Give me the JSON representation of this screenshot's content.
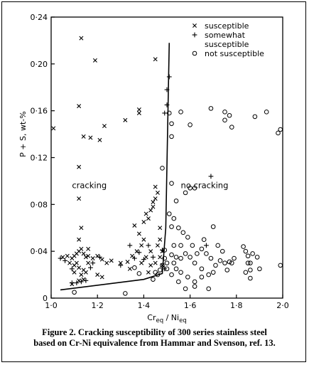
{
  "caption": {
    "line1": "Figure 2.  Cracking susceptibility of 300 series stainless steel",
    "line2": "based on Cr-Ni equivalence from Hammar and Svenson, ref. 13."
  },
  "chart_data": {
    "type": "scatter",
    "xlabel_main": "Cr",
    "xlabel_sub1": "eq",
    "xlabel_mid": " / Ni",
    "xlabel_sub2": "eq",
    "ylabel": "P + S,  wt-%",
    "xlim": [
      1.0,
      2.0
    ],
    "ylim": [
      0.0,
      0.24
    ],
    "x_ticks": [
      1.0,
      1.2,
      1.4,
      1.6,
      1.8,
      2.0
    ],
    "x_tick_labels": [
      "1·0",
      "1·2",
      "1·4",
      "1·6",
      "1·8",
      "2·0"
    ],
    "y_ticks": [
      0.0,
      0.04,
      0.08,
      0.12,
      0.16,
      0.2,
      0.24
    ],
    "y_tick_labels": [
      "0",
      "0·04",
      "0·08",
      "0·12",
      "0·16",
      "0·20",
      "0·24"
    ],
    "legend_position": "top-right",
    "legend": [
      {
        "marker": "x",
        "label_lines": [
          "susceptible"
        ]
      },
      {
        "marker": "+",
        "label_lines": [
          "somewhat",
          "susceptible"
        ]
      },
      {
        "marker": "o",
        "label_lines": [
          "not susceptible"
        ]
      }
    ],
    "annotations": [
      "cracking",
      "no cracking"
    ],
    "boundary": {
      "x": [
        1.04,
        1.4,
        1.48,
        1.495,
        1.51
      ],
      "y": [
        0.007,
        0.016,
        0.021,
        0.06,
        0.218
      ]
    },
    "series": [
      {
        "marker": "x",
        "points": [
          [
            1.01,
            0.145
          ],
          [
            1.13,
            0.222
          ],
          [
            1.12,
            0.164
          ],
          [
            1.14,
            0.138
          ],
          [
            1.12,
            0.112
          ],
          [
            1.12,
            0.085
          ],
          [
            1.19,
            0.203
          ],
          [
            1.17,
            0.137
          ],
          [
            1.21,
            0.135
          ],
          [
            1.23,
            0.147
          ],
          [
            1.32,
            0.152
          ],
          [
            1.38,
            0.158
          ],
          [
            1.38,
            0.161
          ],
          [
            1.45,
            0.204
          ],
          [
            1.05,
            0.035
          ],
          [
            1.07,
            0.036
          ],
          [
            1.09,
            0.034
          ],
          [
            1.1,
            0.036
          ],
          [
            1.11,
            0.038
          ],
          [
            1.12,
            0.04
          ],
          [
            1.13,
            0.042
          ],
          [
            1.14,
            0.038
          ],
          [
            1.15,
            0.035
          ],
          [
            1.16,
            0.036
          ],
          [
            1.12,
            0.05
          ],
          [
            1.13,
            0.06
          ],
          [
            1.11,
            0.03
          ],
          [
            1.1,
            0.028
          ],
          [
            1.12,
            0.026
          ],
          [
            1.14,
            0.024
          ],
          [
            1.15,
            0.022
          ],
          [
            1.13,
            0.02
          ],
          [
            1.12,
            0.015
          ],
          [
            1.14,
            0.016
          ],
          [
            1.16,
            0.03
          ],
          [
            1.18,
            0.034
          ],
          [
            1.2,
            0.036
          ],
          [
            1.22,
            0.033
          ],
          [
            1.24,
            0.03
          ],
          [
            1.26,
            0.032
          ],
          [
            1.3,
            0.03
          ],
          [
            1.33,
            0.031
          ],
          [
            1.35,
            0.036
          ],
          [
            1.37,
            0.04
          ],
          [
            1.39,
            0.045
          ],
          [
            1.4,
            0.05
          ],
          [
            1.38,
            0.055
          ],
          [
            1.36,
            0.062
          ],
          [
            1.4,
            0.065
          ],
          [
            1.42,
            0.068
          ],
          [
            1.41,
            0.072
          ],
          [
            1.43,
            0.075
          ],
          [
            1.44,
            0.078
          ],
          [
            1.45,
            0.085
          ],
          [
            1.46,
            0.09
          ],
          [
            1.45,
            0.095
          ],
          [
            1.44,
            0.082
          ],
          [
            1.47,
            0.06
          ],
          [
            1.47,
            0.05
          ],
          [
            1.46,
            0.045
          ],
          [
            1.48,
            0.04
          ],
          [
            1.47,
            0.035
          ],
          [
            1.45,
            0.03
          ],
          [
            1.43,
            0.028
          ],
          [
            1.48,
            0.028
          ],
          [
            1.42,
            0.022
          ],
          [
            1.2,
            0.02
          ],
          [
            1.22,
            0.018
          ],
          [
            1.34,
            0.025
          ],
          [
            1.43,
            0.04
          ],
          [
            1.41,
            0.035
          ],
          [
            1.39,
            0.03
          ],
          [
            1.09,
            0.012
          ],
          [
            1.1,
            0.022
          ],
          [
            1.08,
            0.03
          ],
          [
            1.16,
            0.042
          ]
        ]
      },
      {
        "marker": "+",
        "points": [
          [
            1.51,
            0.189
          ],
          [
            1.5,
            0.178
          ],
          [
            1.49,
            0.158
          ],
          [
            1.5,
            0.165
          ],
          [
            1.69,
            0.104
          ],
          [
            1.67,
            0.045
          ],
          [
            1.04,
            0.034
          ],
          [
            1.06,
            0.032
          ],
          [
            1.09,
            0.025
          ],
          [
            1.09,
            0.013
          ],
          [
            1.11,
            0.013
          ],
          [
            1.13,
            0.014
          ],
          [
            1.15,
            0.015
          ],
          [
            1.17,
            0.026
          ],
          [
            1.18,
            0.03
          ],
          [
            1.21,
            0.035
          ],
          [
            1.3,
            0.028
          ],
          [
            1.34,
            0.045
          ],
          [
            1.38,
            0.039
          ],
          [
            1.4,
            0.033
          ],
          [
            1.42,
            0.045
          ],
          [
            1.44,
            0.035
          ],
          [
            1.48,
            0.041
          ],
          [
            1.49,
            0.025
          ],
          [
            1.36,
            0.034
          ]
        ]
      },
      {
        "marker": "o",
        "points": [
          [
            1.48,
            0.111
          ],
          [
            1.52,
            0.138
          ],
          [
            1.51,
            0.158
          ],
          [
            1.52,
            0.149
          ],
          [
            1.56,
            0.159
          ],
          [
            1.6,
            0.148
          ],
          [
            1.69,
            0.162
          ],
          [
            1.75,
            0.159
          ],
          [
            1.75,
            0.152
          ],
          [
            1.77,
            0.156
          ],
          [
            1.78,
            0.146
          ],
          [
            1.88,
            0.155
          ],
          [
            1.93,
            0.159
          ],
          [
            1.99,
            0.144
          ],
          [
            1.98,
            0.141
          ],
          [
            1.52,
            0.098
          ],
          [
            1.54,
            0.083
          ],
          [
            1.58,
            0.09
          ],
          [
            1.6,
            0.094
          ],
          [
            1.62,
            0.094
          ],
          [
            1.51,
            0.072
          ],
          [
            1.53,
            0.068
          ],
          [
            1.52,
            0.061
          ],
          [
            1.55,
            0.06
          ],
          [
            1.57,
            0.056
          ],
          [
            1.59,
            0.052
          ],
          [
            1.61,
            0.045
          ],
          [
            1.56,
            0.045
          ],
          [
            1.53,
            0.045
          ],
          [
            1.54,
            0.035
          ],
          [
            1.56,
            0.034
          ],
          [
            1.58,
            0.038
          ],
          [
            1.6,
            0.035
          ],
          [
            1.63,
            0.038
          ],
          [
            1.65,
            0.042
          ],
          [
            1.67,
            0.038
          ],
          [
            1.7,
            0.061
          ],
          [
            1.69,
            0.034
          ],
          [
            1.71,
            0.028
          ],
          [
            1.73,
            0.032
          ],
          [
            1.75,
            0.03
          ],
          [
            1.77,
            0.031
          ],
          [
            1.68,
            0.02
          ],
          [
            1.65,
            0.018
          ],
          [
            1.62,
            0.014
          ],
          [
            1.59,
            0.018
          ],
          [
            1.56,
            0.022
          ],
          [
            1.54,
            0.025
          ],
          [
            1.52,
            0.02
          ],
          [
            1.62,
            0.01
          ],
          [
            1.58,
            0.008
          ],
          [
            1.55,
            0.014
          ],
          [
            1.53,
            0.03
          ],
          [
            1.52,
            0.037
          ],
          [
            1.49,
            0.034
          ],
          [
            1.48,
            0.028
          ],
          [
            1.47,
            0.024
          ],
          [
            1.46,
            0.02
          ],
          [
            1.44,
            0.016
          ],
          [
            1.38,
            0.021
          ],
          [
            1.36,
            0.026
          ],
          [
            1.32,
            0.004
          ],
          [
            1.1,
            0.005
          ],
          [
            1.45,
            0.022
          ],
          [
            1.49,
            0.041
          ],
          [
            1.5,
            0.03
          ],
          [
            1.5,
            0.025
          ],
          [
            1.72,
            0.045
          ],
          [
            1.74,
            0.04
          ],
          [
            1.79,
            0.034
          ],
          [
            1.84,
            0.04
          ],
          [
            1.85,
            0.036
          ],
          [
            1.85,
            0.03
          ],
          [
            1.87,
            0.038
          ],
          [
            1.89,
            0.035
          ],
          [
            1.86,
            0.024
          ],
          [
            1.84,
            0.022
          ],
          [
            1.9,
            0.025
          ],
          [
            1.86,
            0.017
          ],
          [
            1.99,
            0.028
          ],
          [
            1.86,
            0.03
          ],
          [
            1.78,
            0.03
          ],
          [
            1.83,
            0.044
          ],
          [
            1.65,
            0.025
          ],
          [
            1.7,
            0.022
          ],
          [
            1.62,
            0.03
          ],
          [
            1.66,
            0.05
          ],
          [
            1.76,
            0.024
          ],
          [
            1.68,
            0.008
          ]
        ]
      }
    ]
  }
}
